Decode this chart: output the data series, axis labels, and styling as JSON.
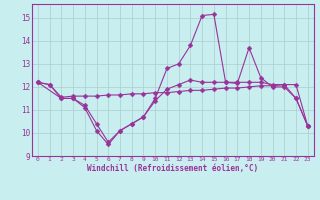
{
  "background_color": "#c8eef0",
  "grid_color": "#aacccc",
  "line_color": "#993399",
  "xlabel": "Windchill (Refroidissement éolien,°C)",
  "xlim": [
    -0.5,
    23.5
  ],
  "ylim": [
    9,
    15.6
  ],
  "yticks": [
    9,
    10,
    11,
    12,
    13,
    14,
    15
  ],
  "xticks": [
    0,
    1,
    2,
    3,
    4,
    5,
    6,
    7,
    8,
    9,
    10,
    11,
    12,
    13,
    14,
    15,
    16,
    17,
    18,
    19,
    20,
    21,
    22,
    23
  ],
  "series1_x": [
    0,
    1,
    2,
    3,
    4,
    5,
    6,
    7,
    8,
    9,
    10,
    11,
    12,
    13,
    14,
    15,
    16,
    17,
    18,
    19,
    20,
    21,
    22,
    23
  ],
  "series1_y": [
    12.2,
    12.1,
    11.5,
    11.5,
    11.1,
    10.1,
    9.5,
    10.1,
    10.4,
    10.7,
    11.5,
    12.8,
    13.0,
    13.8,
    15.1,
    15.15,
    12.2,
    12.15,
    13.7,
    12.4,
    12.0,
    12.0,
    11.5,
    10.3
  ],
  "series2_x": [
    0,
    1,
    2,
    3,
    4,
    5,
    6,
    7,
    8,
    9,
    10,
    11,
    12,
    13,
    14,
    15,
    16,
    17,
    18,
    19,
    20,
    21,
    22,
    23
  ],
  "series2_y": [
    12.2,
    12.1,
    11.55,
    11.6,
    11.6,
    11.6,
    11.65,
    11.65,
    11.7,
    11.7,
    11.75,
    11.75,
    11.8,
    11.85,
    11.85,
    11.9,
    11.95,
    11.95,
    12.0,
    12.05,
    12.05,
    12.1,
    12.1,
    10.3
  ],
  "series3_x": [
    0,
    2,
    3,
    4,
    5,
    6,
    7,
    8,
    9,
    10,
    11,
    12,
    13,
    14,
    15,
    16,
    17,
    18,
    19,
    20,
    21,
    22,
    23
  ],
  "series3_y": [
    12.2,
    11.5,
    11.5,
    11.2,
    10.4,
    9.6,
    10.1,
    10.4,
    10.7,
    11.4,
    11.9,
    12.1,
    12.3,
    12.2,
    12.2,
    12.2,
    12.2,
    12.2,
    12.2,
    12.1,
    12.1,
    11.5,
    10.3
  ]
}
